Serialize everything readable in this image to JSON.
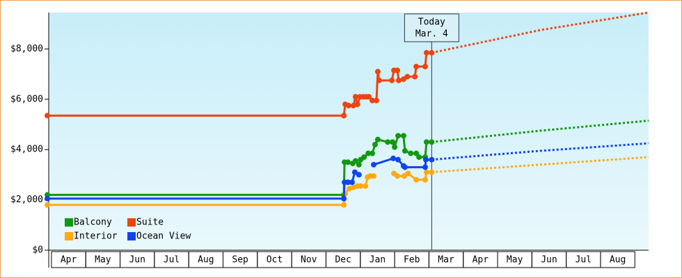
{
  "chart_data": {
    "type": "line",
    "xlim": [
      -0.12,
      17.4
    ],
    "ylim": [
      0,
      9450
    ],
    "xticks": [
      {
        "value": 0.5,
        "label": "Apr"
      },
      {
        "value": 1.5,
        "label": "May"
      },
      {
        "value": 2.5,
        "label": "Jun"
      },
      {
        "value": 3.5,
        "label": "Jul"
      },
      {
        "value": 4.5,
        "label": "Aug"
      },
      {
        "value": 5.5,
        "label": "Sep"
      },
      {
        "value": 6.5,
        "label": "Oct"
      },
      {
        "value": 7.5,
        "label": "Nov"
      },
      {
        "value": 8.5,
        "label": "Dec"
      },
      {
        "value": 9.5,
        "label": "Jan"
      },
      {
        "value": 10.5,
        "label": "Feb"
      },
      {
        "value": 11.5,
        "label": "Mar"
      },
      {
        "value": 12.5,
        "label": "Apr"
      },
      {
        "value": 13.5,
        "label": "May"
      },
      {
        "value": 14.5,
        "label": "Jun"
      },
      {
        "value": 15.5,
        "label": "Jul"
      },
      {
        "value": 16.5,
        "label": "Aug"
      }
    ],
    "yticks": [
      {
        "value": 0,
        "label": "$0"
      },
      {
        "value": 2000,
        "label": "$2,000"
      },
      {
        "value": 4000,
        "label": "$4,000"
      },
      {
        "value": 6000,
        "label": "$6,000"
      },
      {
        "value": 8000,
        "label": "$8,000"
      }
    ],
    "legend_position": "lower left",
    "today_x": 11.08,
    "today_label": [
      "Today",
      "Mar. 4"
    ],
    "series": [
      {
        "name": "Balcony",
        "color": "#119911",
        "x": [
          -0.12,
          8.52,
          8.54,
          8.64,
          8.78,
          8.86,
          8.96,
          9.01,
          9.11,
          9.23,
          9.35,
          9.43,
          9.51,
          9.8,
          9.94,
          10.0,
          10.1,
          10.26,
          10.3,
          10.47,
          10.63,
          10.71,
          10.89,
          10.93,
          11.08
        ],
        "values": [
          2200,
          2200,
          3500,
          3500,
          3450,
          3550,
          3400,
          3600,
          3700,
          3850,
          3850,
          4200,
          4400,
          4300,
          4300,
          4100,
          4550,
          4550,
          3950,
          3850,
          3850,
          3700,
          3700,
          4300,
          4300
        ],
        "projection": {
          "x": [
            11.08,
            14.24,
            17.4
          ],
          "values": [
            4300,
            4750,
            5150
          ]
        }
      },
      {
        "name": "Suite",
        "color": "#ee4411",
        "x": [
          -0.12,
          8.52,
          8.56,
          8.66,
          8.8,
          8.86,
          8.92,
          8.99,
          9.09,
          9.17,
          9.25,
          9.35,
          9.47,
          9.51,
          9.55,
          9.92,
          9.98,
          10.08,
          10.12,
          10.26,
          10.37,
          10.59,
          10.63,
          10.89,
          10.93,
          11.08
        ],
        "values": [
          5350,
          5350,
          5800,
          5750,
          5750,
          6100,
          5800,
          6100,
          6100,
          6100,
          6100,
          5950,
          5950,
          7100,
          6750,
          6750,
          7150,
          7150,
          6750,
          6800,
          6900,
          6900,
          7300,
          7300,
          7850,
          7850
        ],
        "projection": {
          "x": [
            11.08,
            14.24,
            17.4
          ],
          "values": [
            7850,
            8750,
            9450
          ]
        }
      },
      {
        "name": "Interior",
        "color": "#ffaa11",
        "x": [
          -0.12,
          8.52,
          8.56,
          8.68,
          8.8,
          8.92,
          9.01,
          9.15,
          9.21,
          9.29,
          9.39,
          9.78,
          9.98,
          10.08,
          10.28,
          10.39,
          10.63,
          10.89,
          10.93,
          11.08
        ],
        "values": [
          1800,
          1800,
          2250,
          2450,
          2500,
          2550,
          2550,
          2550,
          2900,
          2950,
          2950,
          null,
          3050,
          2950,
          2950,
          3050,
          2800,
          2800,
          3100,
          3100
        ],
        "projection": {
          "x": [
            11.08,
            14.24,
            17.4
          ],
          "values": [
            3100,
            3400,
            3700
          ]
        }
      },
      {
        "name": "Ocean View",
        "color": "#1144ee",
        "x": [
          -0.12,
          8.52,
          8.54,
          8.64,
          8.76,
          8.84,
          8.96,
          9.29,
          9.39,
          9.96,
          10.1,
          10.26,
          10.3,
          10.89,
          10.91,
          11.08
        ],
        "values": [
          2050,
          2050,
          2700,
          2700,
          2700,
          3100,
          3000,
          null,
          3400,
          3650,
          3600,
          3350,
          3300,
          3300,
          3600,
          3600
        ],
        "projection": {
          "x": [
            11.08,
            14.24,
            17.4
          ],
          "values": [
            3600,
            3950,
            4250
          ]
        }
      }
    ]
  }
}
